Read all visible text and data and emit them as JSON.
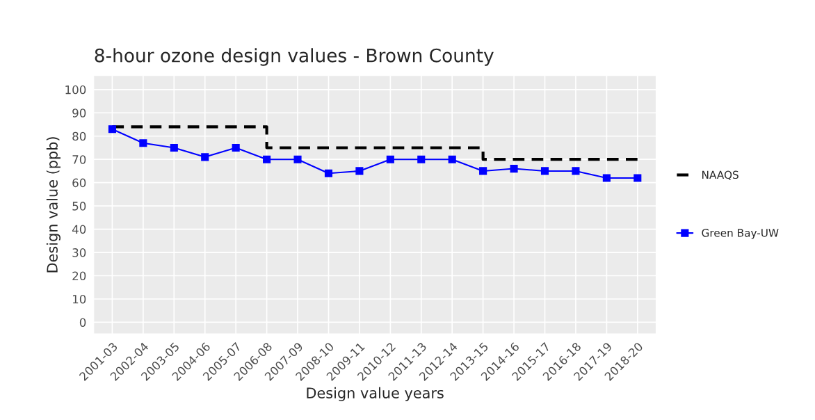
{
  "chart_data": {
    "type": "line",
    "title": "8-hour ozone design values - Brown County",
    "xlabel": "Design value years",
    "ylabel": "Design value (ppb)",
    "categories": [
      "2001-03",
      "2002-04",
      "2003-05",
      "2004-06",
      "2005-07",
      "2006-08",
      "2007-09",
      "2008-10",
      "2009-11",
      "2010-12",
      "2011-13",
      "2012-14",
      "2013-15",
      "2014-16",
      "2015-17",
      "2016-18",
      "2017-19",
      "2018-20"
    ],
    "series": [
      {
        "name": "NAAQS",
        "type": "step",
        "color": "#000000",
        "line_style": "dashed",
        "marker": "none",
        "values": [
          84,
          84,
          84,
          84,
          84,
          75,
          75,
          75,
          75,
          75,
          75,
          75,
          70,
          70,
          70,
          70,
          70,
          70
        ]
      },
      {
        "name": "Green Bay-UW",
        "color": "#0000ff",
        "line_style": "solid",
        "marker": "square",
        "values": [
          83,
          77,
          75,
          71,
          75,
          70,
          70,
          64,
          65,
          70,
          70,
          70,
          65,
          66,
          65,
          65,
          62,
          62
        ]
      }
    ],
    "ylim": [
      -5,
      106
    ],
    "yticks": [
      0,
      10,
      20,
      30,
      40,
      50,
      60,
      70,
      80,
      90,
      100
    ],
    "grid": true,
    "legend": "right"
  }
}
